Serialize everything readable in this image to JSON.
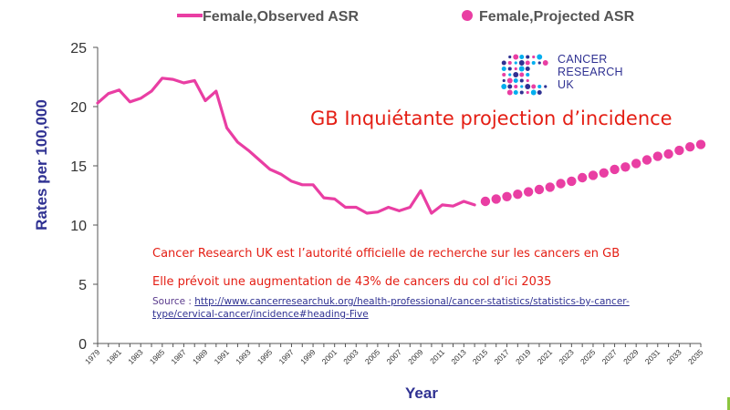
{
  "chart_data": {
    "type": "line",
    "x": [
      1979,
      1980,
      1981,
      1982,
      1983,
      1984,
      1985,
      1986,
      1987,
      1988,
      1989,
      1990,
      1991,
      1992,
      1993,
      1994,
      1995,
      1996,
      1997,
      1998,
      1999,
      2000,
      2001,
      2002,
      2003,
      2004,
      2005,
      2006,
      2007,
      2008,
      2009,
      2010,
      2011,
      2012,
      2013,
      2014,
      2015,
      2016,
      2017,
      2018,
      2019,
      2020,
      2021,
      2022,
      2023,
      2024,
      2025,
      2026,
      2027,
      2028,
      2029,
      2030,
      2031,
      2032,
      2033,
      2034,
      2035
    ],
    "series": [
      {
        "name": "Female,Observed ASR",
        "color": "#e93ea3",
        "style": "line",
        "x": [
          1979,
          1980,
          1981,
          1982,
          1983,
          1984,
          1985,
          1986,
          1987,
          1988,
          1989,
          1990,
          1991,
          1992,
          1993,
          1994,
          1995,
          1996,
          1997,
          1998,
          1999,
          2000,
          2001,
          2002,
          2003,
          2004,
          2005,
          2006,
          2007,
          2008,
          2009,
          2010,
          2011,
          2012,
          2013,
          2014
        ],
        "values": [
          20.3,
          21.1,
          21.4,
          20.4,
          20.7,
          21.3,
          22.4,
          22.3,
          22.0,
          22.2,
          20.5,
          21.3,
          18.2,
          17.0,
          16.3,
          15.5,
          14.7,
          14.3,
          13.7,
          13.4,
          13.4,
          12.3,
          12.2,
          11.5,
          11.5,
          11.0,
          11.1,
          11.5,
          11.2,
          11.5,
          12.9,
          11.0,
          11.7,
          11.6,
          12.0,
          11.7
        ]
      },
      {
        "name": "Female,Projected ASR",
        "color": "#e93ea3",
        "style": "markers",
        "x": [
          2015,
          2016,
          2017,
          2018,
          2019,
          2020,
          2021,
          2022,
          2023,
          2024,
          2025,
          2026,
          2027,
          2028,
          2029,
          2030,
          2031,
          2032,
          2033,
          2034,
          2035
        ],
        "values": [
          12.0,
          12.2,
          12.4,
          12.6,
          12.8,
          13.0,
          13.2,
          13.5,
          13.7,
          14.0,
          14.2,
          14.4,
          14.7,
          14.9,
          15.2,
          15.5,
          15.8,
          16.0,
          16.3,
          16.6,
          16.8
        ]
      }
    ],
    "x_tick_labels": [
      "1979",
      "1981",
      "1983",
      "1985",
      "1987",
      "1989",
      "1991",
      "1993",
      "1995",
      "1997",
      "1999",
      "2001",
      "2003",
      "2005",
      "2007",
      "2009",
      "2011",
      "2013",
      "2015",
      "2017",
      "2019",
      "2021",
      "2023",
      "2025",
      "2027",
      "2029",
      "2031",
      "2033",
      "2035"
    ],
    "y_ticks": [
      0,
      5,
      10,
      15,
      20,
      25
    ],
    "xlabel": "Year",
    "ylabel": "Rates per 100,000",
    "xlim": [
      1979,
      2035
    ],
    "ylim": [
      0,
      25
    ],
    "grid": false,
    "legend_position": "top"
  },
  "annotations": {
    "headline": "GB Inquiétante projection d’incidence",
    "note1": "Cancer Research UK est l’autorité officielle de recherche sur les cancers en GB",
    "note2": "Elle prévoit une augmentation de 43% de cancers du col d’ici 2035",
    "source_prefix": "Source : ",
    "source_link": "http://www.cancerresearchuk.org/health-professional/cancer-statistics/statistics-by-cancer-type/cervical-cancer/incidence#heading-Five"
  },
  "logo": {
    "line1": "CANCER",
    "line2": "RESEARCH",
    "line3": "UK",
    "colors": [
      "#2f3192",
      "#e93ea3",
      "#00aeef"
    ]
  }
}
